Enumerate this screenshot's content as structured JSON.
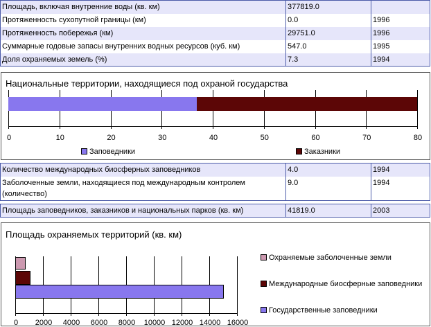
{
  "table1": [
    {
      "label": "Площадь, включая внутренние воды (кв. км)",
      "value": "377819.0",
      "year": ""
    },
    {
      "label": "Протяженность сухопутной границы (км)",
      "value": "0.0",
      "year": "1996"
    },
    {
      "label": "Протяженность побережья (км)",
      "value": "29751.0",
      "year": "1996"
    },
    {
      "label": "Суммарные годовые запасы внутренних водных ресурсов (куб. км)",
      "value": "547.0",
      "year": "1995"
    },
    {
      "label": "Доля охраняемых земель (%)",
      "value": "7.3",
      "year": "1994"
    }
  ],
  "table2": [
    {
      "label": "Количество международных биосферных заповедников",
      "value": "4.0",
      "year": "1994"
    },
    {
      "label": "Заболоченные земли, находящиеся под международным контролем (количество)",
      "value": "9.0",
      "year": "1994"
    }
  ],
  "table3": [
    {
      "label": "Площадь заповедников, заказников и национальных парков (кв. км)",
      "value": "41819.0",
      "year": "2003"
    }
  ],
  "chart_data": [
    {
      "type": "bar",
      "orientation": "horizontal-stacked",
      "title": "Национальные территории, находящиеся под охраной государства",
      "xlim": [
        0,
        80
      ],
      "ticks": [
        "0",
        "10",
        "20",
        "30",
        "40",
        "50",
        "60",
        "70",
        "80"
      ],
      "grid": true,
      "legend": "bottom",
      "series": [
        {
          "name": "Заповедники",
          "values": [
            36.9
          ],
          "color": "#8877ee"
        },
        {
          "name": "Заказники",
          "values": [
            43.1
          ],
          "color": "#5c0606"
        }
      ]
    },
    {
      "type": "bar",
      "orientation": "horizontal",
      "title": "Площадь охраняемых территорий (кв. км)",
      "xlim": [
        0,
        16000
      ],
      "ticks": [
        "0",
        "2000",
        "4000",
        "6000",
        "8000",
        "10000",
        "12000",
        "14000",
        "16000"
      ],
      "grid": true,
      "legend": "right",
      "series": [
        {
          "name": "Охраняемые заболоченные земли",
          "values": [
            770
          ],
          "color": "#cc99b0"
        },
        {
          "name": "Международные биосферные заповедники",
          "values": [
            1110
          ],
          "color": "#5c0606"
        },
        {
          "name": "Государственные заповедники",
          "values": [
            15070
          ],
          "color": "#8877ee"
        }
      ]
    }
  ]
}
